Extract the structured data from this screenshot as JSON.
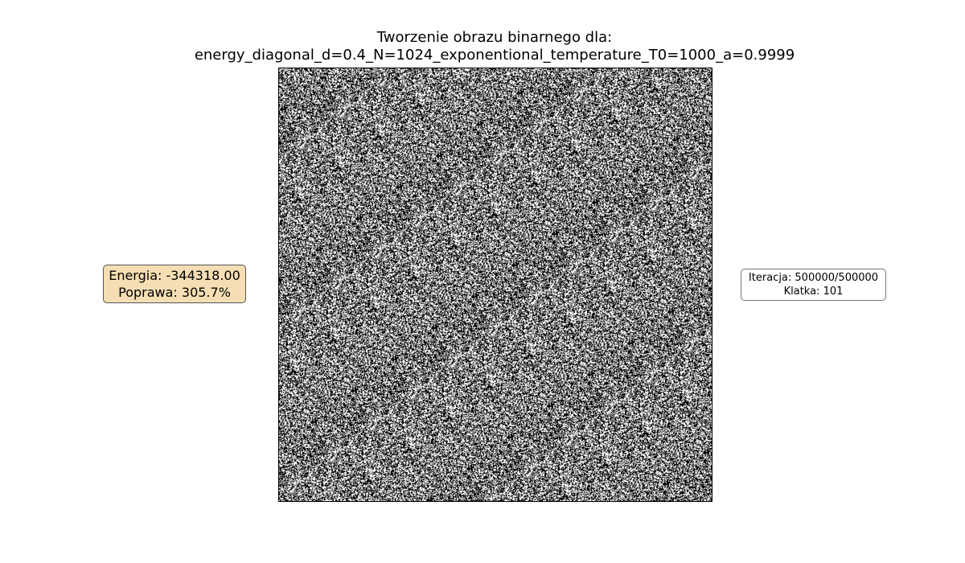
{
  "title": {
    "line1": "Tworzenie obrazu binarnego dla:",
    "line2": "energy_diagonal_d=0.4_N=1024_exponentional_temperature_T0=1000_a=0.9999"
  },
  "energy_box": {
    "energy": "Energia: -344318.00",
    "improvement": "Poprawa: 305.7%",
    "background": "#f5deb3"
  },
  "iteration_box": {
    "iteration": "Iteracja: 500000/500000",
    "frame": "Klatka: 101"
  },
  "image": {
    "description_kind": "binary-noise",
    "colors": [
      "#000000",
      "#ffffff"
    ]
  }
}
